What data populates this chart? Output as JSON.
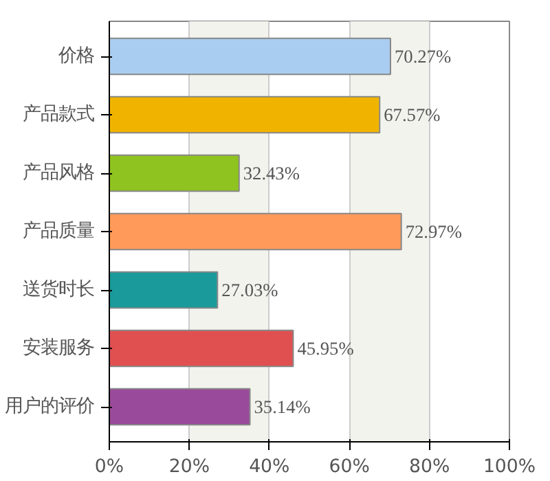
{
  "chart_data": {
    "type": "bar",
    "orientation": "horizontal",
    "categories": [
      "价格",
      "产品款式",
      "产品风格",
      "产品质量",
      "送货时长",
      "安装服务",
      "用户的评价"
    ],
    "values": [
      70.27,
      67.57,
      32.43,
      72.97,
      27.03,
      45.95,
      35.14
    ],
    "colors": [
      "#a9cdf0",
      "#f0b400",
      "#8fc31f",
      "#ff9a5a",
      "#1a9a9a",
      "#e05050",
      "#9a4a9a"
    ],
    "value_labels": [
      "70.27%",
      "67.57%",
      "32.43%",
      "72.97%",
      "27.03%",
      "45.95%",
      "35.14%"
    ],
    "xlim": [
      0,
      100
    ],
    "xticks": [
      {
        "value": 0,
        "label": "0%"
      },
      {
        "value": 20,
        "label": "20%"
      },
      {
        "value": 40,
        "label": "40%"
      },
      {
        "value": 60,
        "label": "60%"
      },
      {
        "value": 80,
        "label": "80%"
      },
      {
        "value": 100,
        "label": "100%"
      }
    ],
    "grid": "x"
  }
}
